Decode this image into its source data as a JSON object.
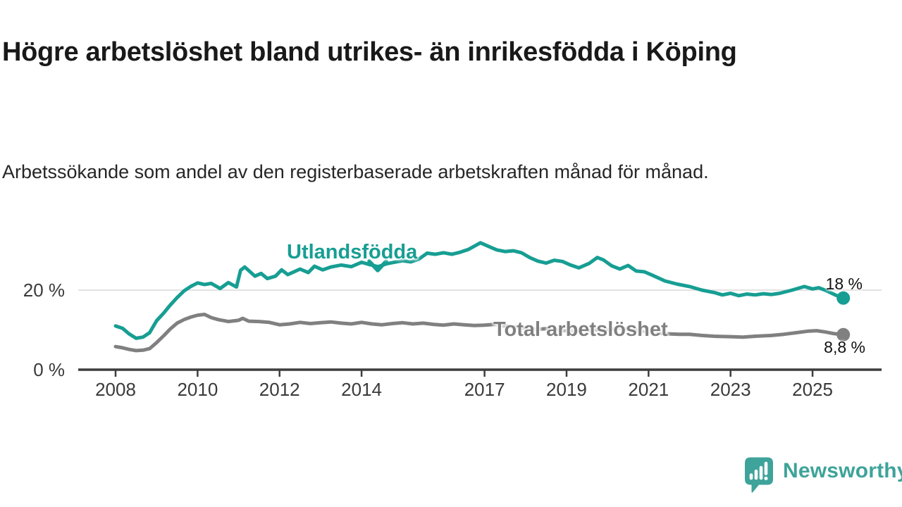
{
  "header": {
    "title": "Högre arbetslöshet bland utrikes- än inrikesfödda i Köping",
    "subtitle": "Arbetssökande som andel av den registerbaserade arbetskraften månad för månad."
  },
  "footer": {
    "brand_label": "Newsworthy",
    "brand_color": "#3EA39A",
    "logo_icon": "speech-bubble-bar-chart-exclamation"
  },
  "chart_data": {
    "type": "line",
    "title": "Högre arbetslöshet bland utrikes- än inrikesfödda i Köping",
    "subtitle": "Arbetssökande som andel av den registerbaserade arbetskraften månad för månad.",
    "unit": "%",
    "grid": "horizontal-only",
    "legend_position": "inline-annotations",
    "x_axis": {
      "ticks": [
        2008,
        2010,
        2012,
        2014,
        2017,
        2019,
        2021,
        2023,
        2025
      ],
      "range": [
        2007.1,
        2026.7
      ]
    },
    "y_axis": {
      "ticks": [
        {
          "value": 0,
          "label": "0 %"
        },
        {
          "value": 20,
          "label": "20 %"
        }
      ],
      "range": [
        0,
        35
      ],
      "gridlines": [
        20
      ]
    },
    "series": [
      {
        "name": "Utlandsfödda",
        "color": "#179E93",
        "end_value": 18,
        "end_label": "18 %",
        "points": [
          [
            2008,
            11
          ],
          [
            2008.17,
            10.4
          ],
          [
            2008.33,
            9
          ],
          [
            2008.5,
            7.9
          ],
          [
            2008.67,
            8.2
          ],
          [
            2008.83,
            9.3
          ],
          [
            2009,
            12.3
          ],
          [
            2009.17,
            14.2
          ],
          [
            2009.33,
            16.2
          ],
          [
            2009.5,
            18.1
          ],
          [
            2009.67,
            19.8
          ],
          [
            2009.83,
            20.9
          ],
          [
            2010,
            21.8
          ],
          [
            2010.17,
            21.4
          ],
          [
            2010.33,
            21.7
          ],
          [
            2010.55,
            20.4
          ],
          [
            2010.75,
            21.9
          ],
          [
            2010.95,
            20.8
          ],
          [
            2011.05,
            25
          ],
          [
            2011.15,
            25.8
          ],
          [
            2011.4,
            23.5
          ],
          [
            2011.55,
            24.2
          ],
          [
            2011.7,
            22.9
          ],
          [
            2011.9,
            23.5
          ],
          [
            2012.05,
            25.1
          ],
          [
            2012.2,
            23.9
          ],
          [
            2012.5,
            25.3
          ],
          [
            2012.7,
            24.4
          ],
          [
            2012.85,
            26
          ],
          [
            2013.05,
            25.1
          ],
          [
            2013.25,
            25.8
          ],
          [
            2013.5,
            26.3
          ],
          [
            2013.75,
            25.9
          ],
          [
            2014,
            27
          ],
          [
            2014.2,
            26.4
          ],
          [
            2014.4,
            25.9
          ],
          [
            2014.6,
            26.6
          ],
          [
            2014.8,
            27
          ],
          [
            2015,
            27.4
          ],
          [
            2015.2,
            27.1
          ],
          [
            2015.4,
            27.8
          ],
          [
            2015.6,
            29.3
          ],
          [
            2015.8,
            29
          ],
          [
            2016,
            29.4
          ],
          [
            2016.2,
            29
          ],
          [
            2016.4,
            29.5
          ],
          [
            2016.6,
            30.2
          ],
          [
            2016.9,
            31.9
          ],
          [
            2017.1,
            31
          ],
          [
            2017.3,
            30.1
          ],
          [
            2017.5,
            29.7
          ],
          [
            2017.7,
            29.9
          ],
          [
            2017.9,
            29.4
          ],
          [
            2018.1,
            28.2
          ],
          [
            2018.3,
            27.3
          ],
          [
            2018.5,
            26.8
          ],
          [
            2018.7,
            27.5
          ],
          [
            2018.9,
            27.2
          ],
          [
            2019.1,
            26.3
          ],
          [
            2019.3,
            25.6
          ],
          [
            2019.55,
            26.7
          ],
          [
            2019.75,
            28.2
          ],
          [
            2019.9,
            27.6
          ],
          [
            2020.1,
            26.1
          ],
          [
            2020.3,
            25.3
          ],
          [
            2020.5,
            26.2
          ],
          [
            2020.7,
            24.8
          ],
          [
            2020.9,
            24.6
          ],
          [
            2021.1,
            23.7
          ],
          [
            2021.4,
            22.3
          ],
          [
            2021.7,
            21.5
          ],
          [
            2022,
            20.9
          ],
          [
            2022.3,
            20
          ],
          [
            2022.6,
            19.4
          ],
          [
            2022.8,
            18.8
          ],
          [
            2023,
            19.2
          ],
          [
            2023.2,
            18.6
          ],
          [
            2023.4,
            19
          ],
          [
            2023.6,
            18.8
          ],
          [
            2023.8,
            19.1
          ],
          [
            2024,
            18.9
          ],
          [
            2024.2,
            19.2
          ],
          [
            2024.5,
            20
          ],
          [
            2024.8,
            20.9
          ],
          [
            2025,
            20.3
          ],
          [
            2025.15,
            20.6
          ],
          [
            2025.35,
            19.8
          ],
          [
            2025.55,
            18.8
          ],
          [
            2025.75,
            18
          ]
        ]
      },
      {
        "name": "Total arbetslöshet",
        "color": "#808080",
        "end_value": 8.8,
        "end_label": "8,8 %",
        "points": [
          [
            2008,
            5.8
          ],
          [
            2008.17,
            5.5
          ],
          [
            2008.33,
            5.1
          ],
          [
            2008.5,
            4.8
          ],
          [
            2008.67,
            4.9
          ],
          [
            2008.83,
            5.3
          ],
          [
            2009,
            6.8
          ],
          [
            2009.17,
            8.5
          ],
          [
            2009.33,
            10.2
          ],
          [
            2009.5,
            11.7
          ],
          [
            2009.67,
            12.6
          ],
          [
            2009.83,
            13.2
          ],
          [
            2010,
            13.7
          ],
          [
            2010.17,
            13.9
          ],
          [
            2010.33,
            13.1
          ],
          [
            2010.5,
            12.6
          ],
          [
            2010.75,
            12.1
          ],
          [
            2011,
            12.4
          ],
          [
            2011.1,
            12.9
          ],
          [
            2011.25,
            12.2
          ],
          [
            2011.5,
            12.1
          ],
          [
            2011.75,
            11.9
          ],
          [
            2012,
            11.3
          ],
          [
            2012.25,
            11.5
          ],
          [
            2012.5,
            11.9
          ],
          [
            2012.75,
            11.6
          ],
          [
            2013,
            11.8
          ],
          [
            2013.25,
            12
          ],
          [
            2013.5,
            11.7
          ],
          [
            2013.75,
            11.5
          ],
          [
            2014,
            11.9
          ],
          [
            2014.25,
            11.5
          ],
          [
            2014.5,
            11.3
          ],
          [
            2014.75,
            11.6
          ],
          [
            2015,
            11.8
          ],
          [
            2015.25,
            11.5
          ],
          [
            2015.5,
            11.7
          ],
          [
            2015.75,
            11.4
          ],
          [
            2016,
            11.2
          ],
          [
            2016.25,
            11.5
          ],
          [
            2016.5,
            11.3
          ],
          [
            2016.75,
            11.1
          ],
          [
            2017,
            11.2
          ],
          [
            2017.25,
            11.4
          ],
          [
            2017.5,
            11
          ],
          [
            2017.75,
            10.7
          ],
          [
            2018,
            10.4
          ],
          [
            2018.25,
            10.1
          ],
          [
            2018.5,
            10.3
          ],
          [
            2018.75,
            10
          ],
          [
            2019,
            9.8
          ],
          [
            2019.25,
            9.6
          ],
          [
            2019.5,
            9.8
          ],
          [
            2019.75,
            10
          ],
          [
            2020,
            9.9
          ],
          [
            2020.25,
            10.5
          ],
          [
            2020.5,
            10.2
          ],
          [
            2020.75,
            9.9
          ],
          [
            2021,
            9.5
          ],
          [
            2021.25,
            9.2
          ],
          [
            2021.5,
            9
          ],
          [
            2021.75,
            8.9
          ],
          [
            2022,
            8.9
          ],
          [
            2022.3,
            8.6
          ],
          [
            2022.6,
            8.4
          ],
          [
            2023,
            8.3
          ],
          [
            2023.3,
            8.2
          ],
          [
            2023.6,
            8.4
          ],
          [
            2024,
            8.6
          ],
          [
            2024.3,
            8.9
          ],
          [
            2024.6,
            9.3
          ],
          [
            2024.9,
            9.7
          ],
          [
            2025.1,
            9.8
          ],
          [
            2025.3,
            9.5
          ],
          [
            2025.5,
            9.1
          ],
          [
            2025.75,
            8.8
          ]
        ]
      }
    ]
  }
}
